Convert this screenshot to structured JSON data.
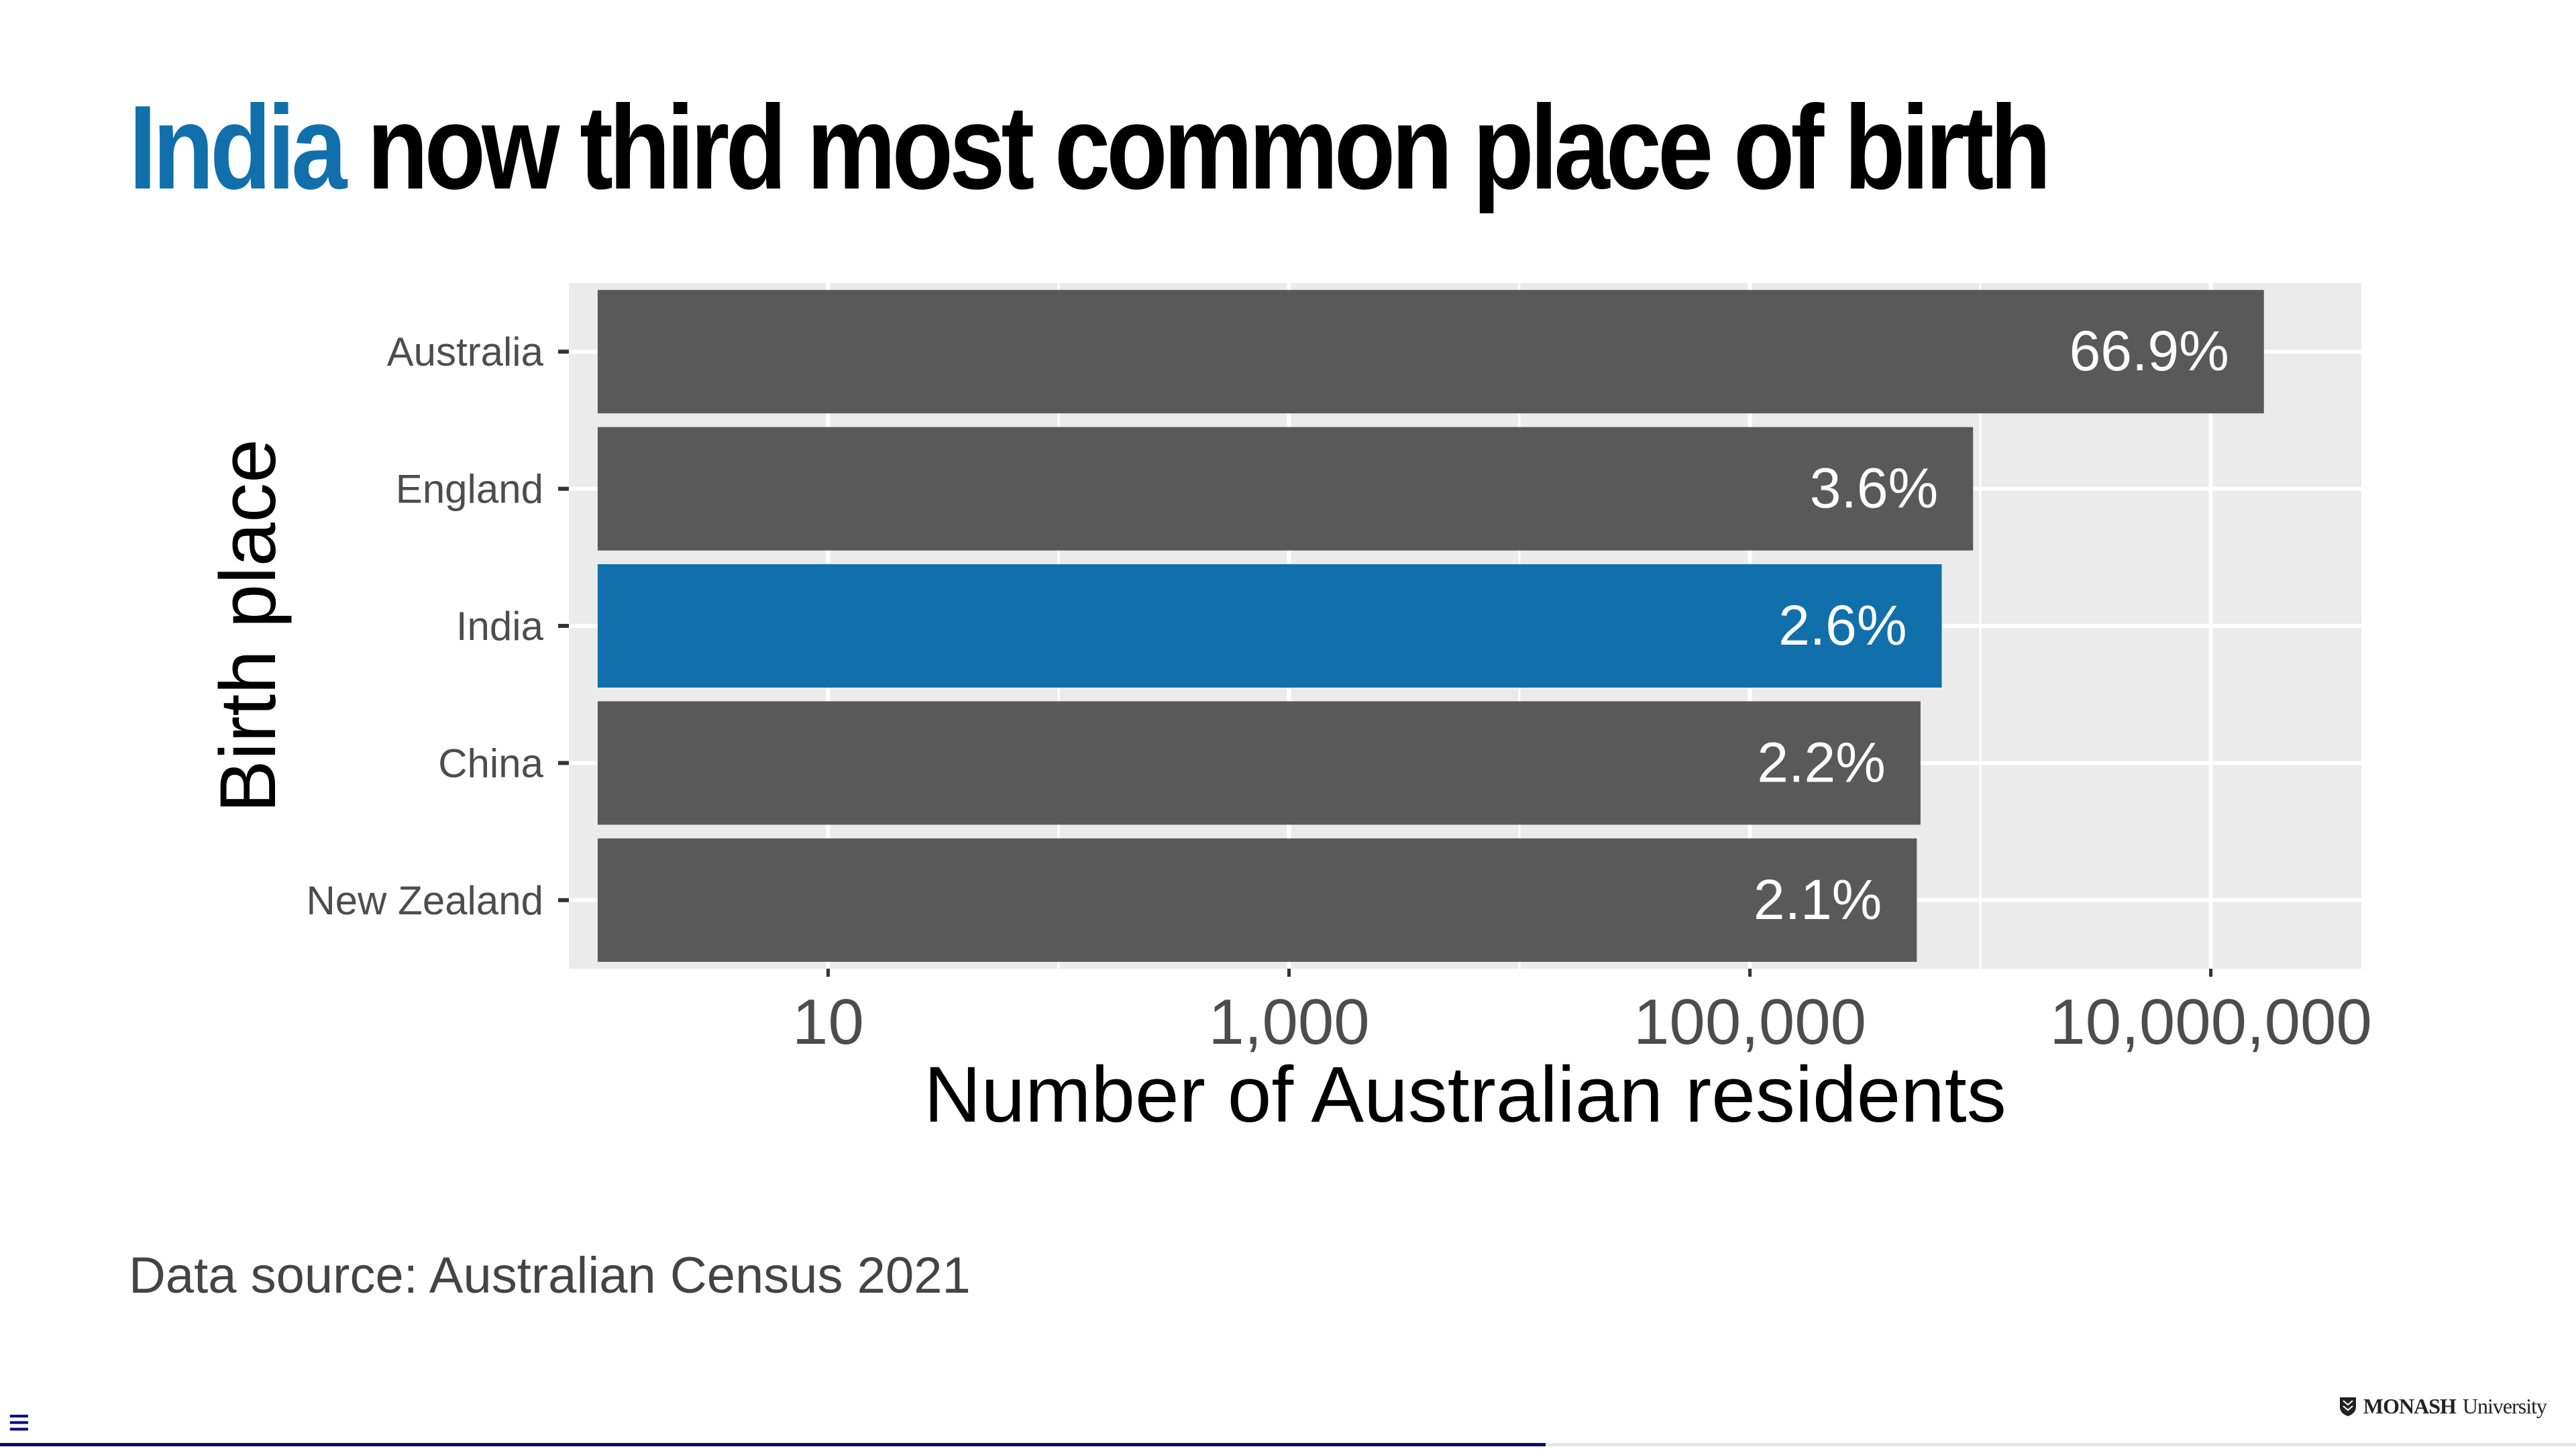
{
  "slide": {
    "title_highlight": "India",
    "title_rest": " now third most common place of birth",
    "source": "Data source: Australian Census 2021",
    "menu_icon": "hamburger-menu-icon",
    "logo_crest": "shield-crest-icon",
    "logo_strong": "MONASH",
    "logo_light": "University"
  },
  "progress": {
    "fraction": 0.6
  },
  "colors": {
    "title_highlight": "#1170ab",
    "bar_default": "#595959",
    "bar_highlight": "#1170ab",
    "panel": "#ebebeb",
    "grid": "#ffffff"
  },
  "chart_data": {
    "type": "bar",
    "orientation": "horizontal",
    "categories": [
      "Australia",
      "England",
      "India",
      "China",
      "New Zealand"
    ],
    "values": [
      17000000,
      930000,
      680000,
      550000,
      530000
    ],
    "labels": [
      "66.9%",
      "3.6%",
      "2.6%",
      "2.2%",
      "2.1%"
    ],
    "highlight": "India",
    "xlabel": "Number of Australian residents",
    "ylabel": "Birth place",
    "x_scale": "log10",
    "x_ticks": [
      10,
      1000,
      100000,
      10000000
    ],
    "x_tick_labels": [
      "10",
      "1,000",
      "100,000",
      "10,000,000"
    ],
    "xlim": [
      0.75,
      45000000
    ],
    "bar_base": 1,
    "grid": true,
    "legend": "none"
  }
}
